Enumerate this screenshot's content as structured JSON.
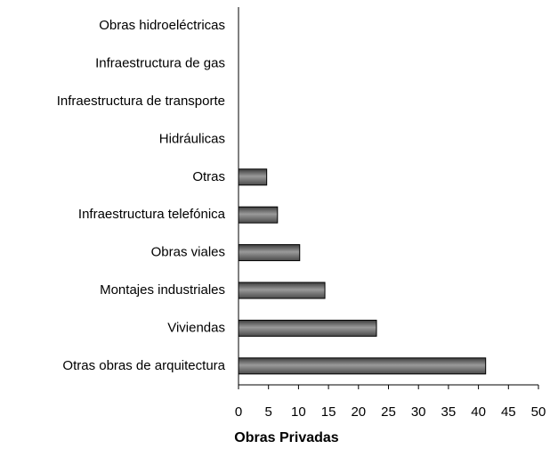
{
  "chart_data": {
    "type": "bar",
    "orientation": "horizontal",
    "xlabel": "Obras Privadas",
    "categories": [
      "Obras hidroeléctricas",
      "Infraestructura de gas",
      "Infraestructura de transporte",
      "Hidráulicas",
      "Otras",
      "Infraestructura telefónica",
      "Obras viales",
      "Montajes industriales",
      "Viviendas",
      "Otras obras de arquitectura"
    ],
    "values": [
      0,
      0,
      0,
      0,
      4.7,
      6.5,
      10.2,
      14.4,
      23.0,
      41.2
    ],
    "color": "#6e6e6e",
    "xlim": [
      0,
      50
    ],
    "xticks": [
      0,
      5,
      10,
      15,
      20,
      25,
      30,
      35,
      40,
      45,
      50
    ],
    "grid": false
  }
}
